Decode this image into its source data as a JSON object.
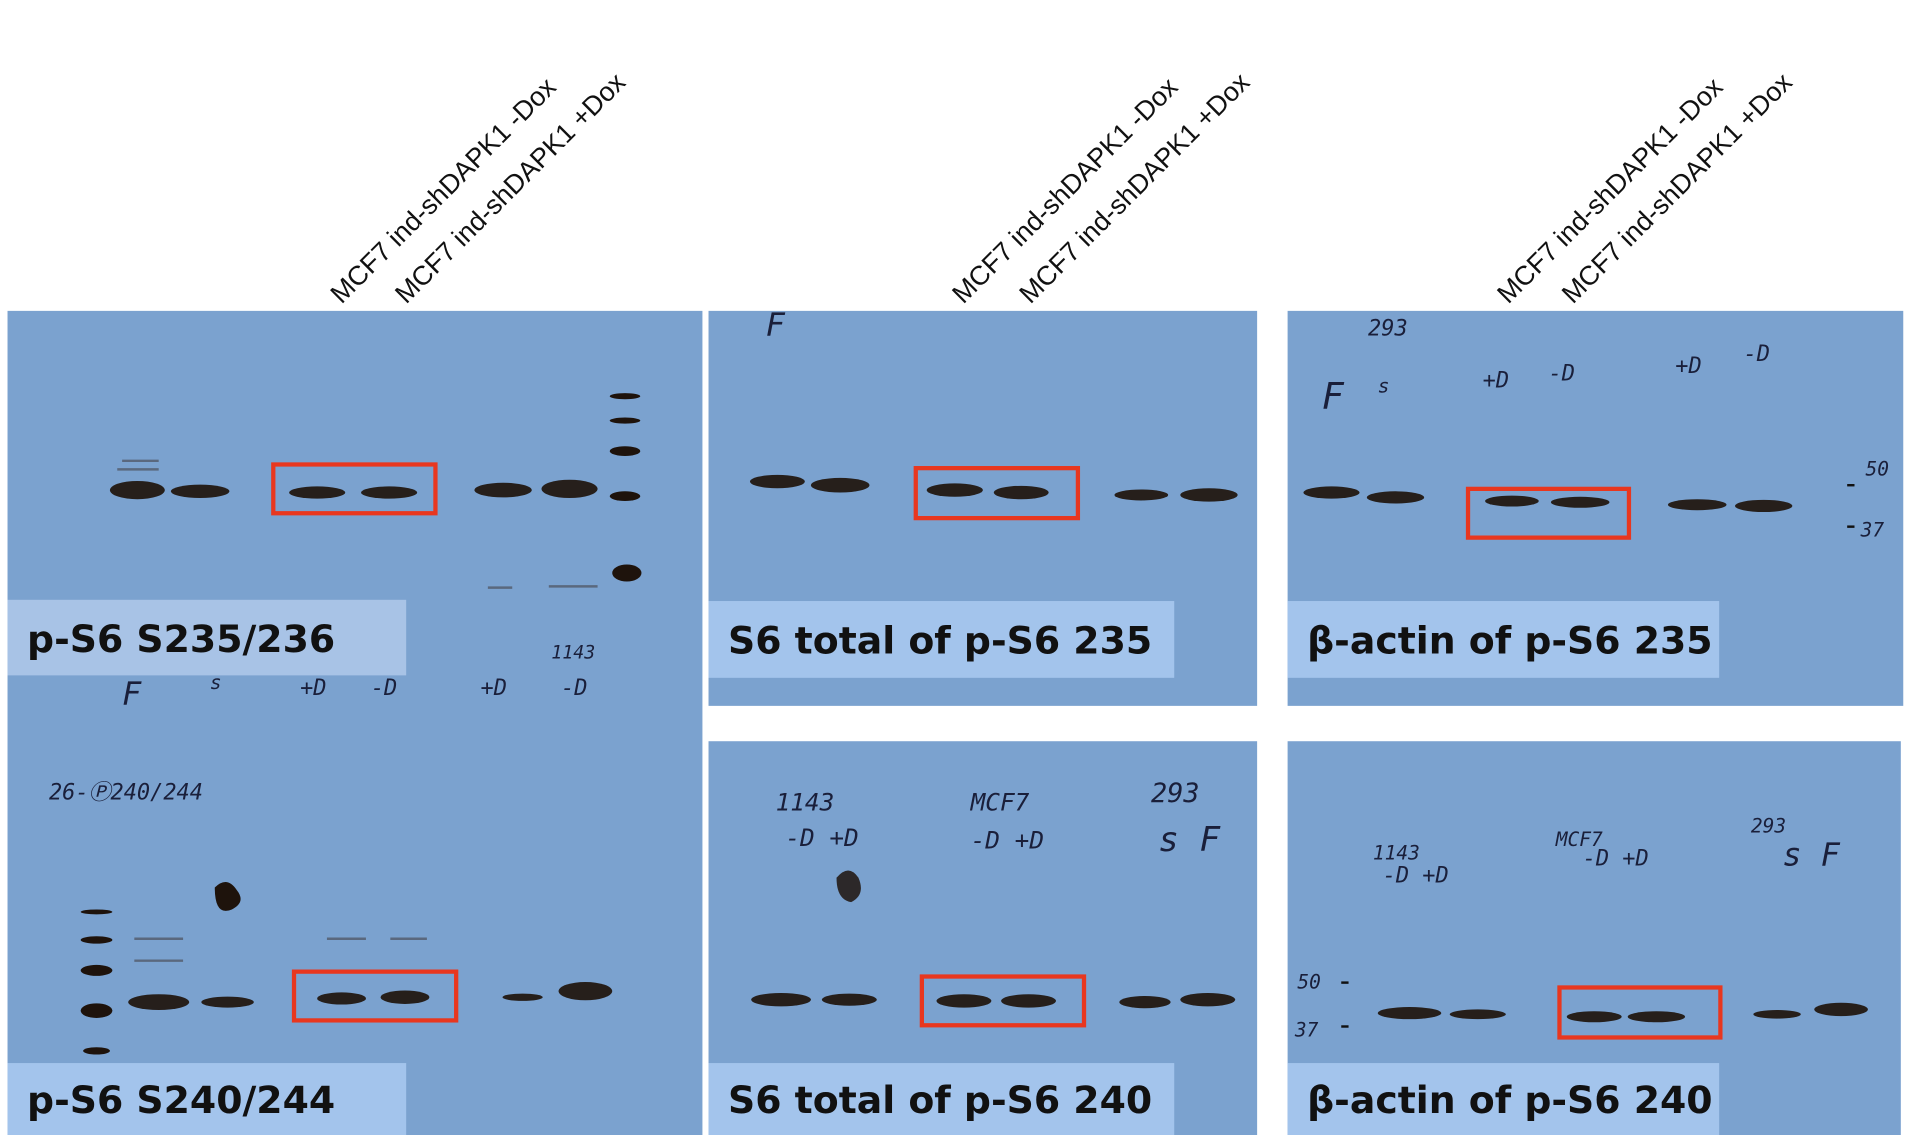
{
  "lane_labels": [
    {
      "minus": "MCF7 ind-shDAPK1 -Dox",
      "plus": "MCF7 ind-shDAPK1 +Dox"
    },
    {
      "minus": "MCF7 ind-shDAPK1 -Dox",
      "plus": "MCF7 ind-shDAPK1 +Dox"
    },
    {
      "minus": "MCF7 ind-shDAPK1 -Dox",
      "plus": "MCF7 ind-shDAPK1 +Dox"
    }
  ],
  "panels": [
    {
      "label": "p-S6 S235/236",
      "notes": [
        "1143",
        "F",
        "s",
        "+D",
        "-D",
        "+D",
        "-D"
      ]
    },
    {
      "label": "p-S6 S240/244",
      "notes": [
        "26-Ⓟ240/244"
      ]
    },
    {
      "label": "S6 total of p-S6 235",
      "notes": [
        "F"
      ]
    },
    {
      "label": "S6 total of p-S6 240",
      "notes": [
        "1143",
        "-D +D",
        "MCF7",
        "-D +D",
        "293",
        "s F"
      ]
    },
    {
      "label": "β-actin of p-S6 235",
      "notes": [
        "293",
        "F",
        "s",
        "+D",
        "-D",
        "+D",
        "-D",
        "50",
        "37"
      ]
    },
    {
      "label": "β-actin of p-S6 240",
      "notes": [
        "1143",
        "-D +D",
        "MCF7",
        "-D +D",
        "293",
        "s F",
        "50",
        "37"
      ]
    }
  ]
}
